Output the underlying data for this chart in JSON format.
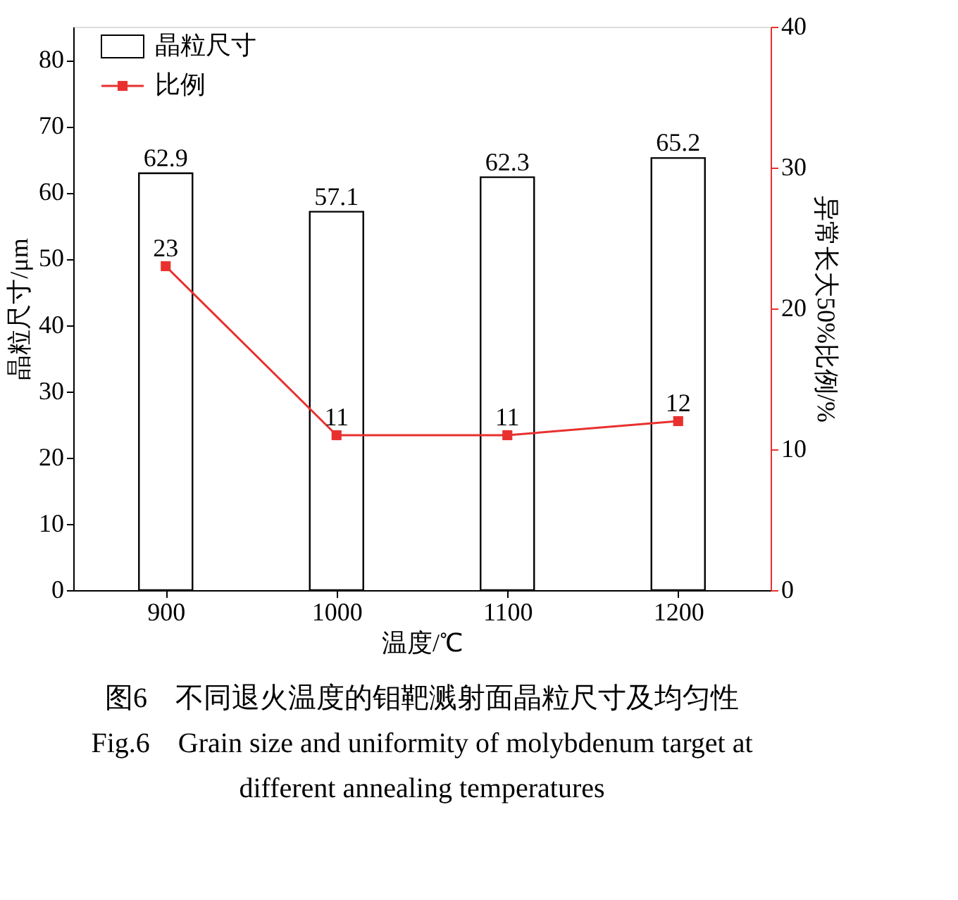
{
  "chart_data": {
    "type": "bar",
    "categories": [
      "900",
      "1000",
      "1100",
      "1200"
    ],
    "xlabel": "温度/℃",
    "ylabel": "晶粒尺寸/μm",
    "y2label": "异常长大50%比例/%",
    "series": [
      {
        "name": "晶粒尺寸",
        "color": "#ffffff",
        "values": [
          62.9,
          57.1,
          62.3,
          65.2
        ]
      },
      {
        "name": "比例",
        "type": "line",
        "axis": "y2",
        "color": "#e8312f",
        "marker": "square",
        "values": [
          23,
          11,
          11,
          12
        ]
      }
    ],
    "ylim": [
      0,
      85
    ],
    "yticks": [
      0,
      10,
      20,
      30,
      40,
      50,
      60,
      70,
      80
    ],
    "y2lim": [
      0,
      40
    ],
    "y2ticks": [
      0,
      10,
      20,
      30,
      40
    ],
    "data_labels": true,
    "legend": "top left",
    "grid": false,
    "annotations": [
      "图6　不同退火温度的钼靶溅射面晶粒尺寸及均匀性",
      "Fig.6　Grain size and uniformity of molybdenum target at",
      "different annealing temperatures"
    ]
  }
}
